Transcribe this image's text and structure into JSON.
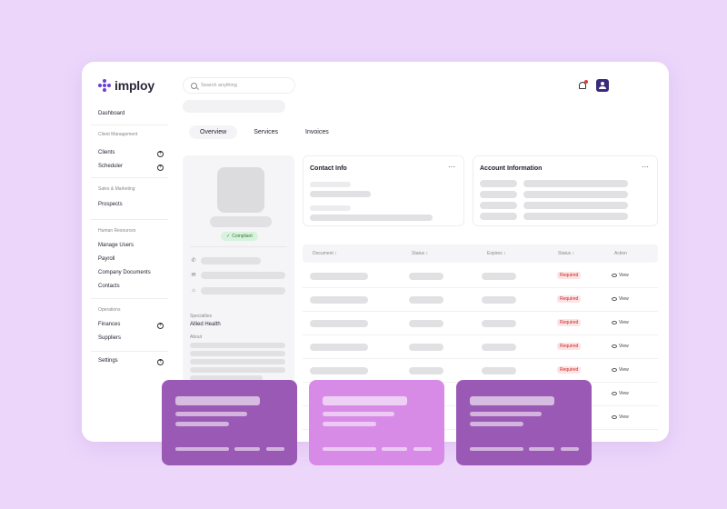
{
  "brand": {
    "name": "imploy",
    "accent": "#6b3fd4"
  },
  "search": {
    "placeholder": "Search anything"
  },
  "sidebar": {
    "dashboard": "Dashboard",
    "client_management": {
      "label": "Client Management",
      "clients": "Clients",
      "scheduler": "Scheduler"
    },
    "sales_marketing": {
      "label": "Sales & Marketing",
      "prospects": "Prospects"
    },
    "human_resources": {
      "label": "Human Resources",
      "manage_users": "Manage Users",
      "payroll": "Payroll",
      "company_documents": "Company Documents",
      "contacts": "Contacts"
    },
    "operations": {
      "label": "Operations",
      "finances": "Finances",
      "suppliers": "Suppliers"
    },
    "settings": "Settings"
  },
  "tabs": [
    "Overview",
    "Services",
    "Invoices"
  ],
  "profile": {
    "badge": "Compliant",
    "specialties_label": "Specialties",
    "specialties_value": "Allied Health",
    "about_label": "About"
  },
  "cards": {
    "contact_title": "Contact Info",
    "account_title": "Account Information",
    "more": "⋯"
  },
  "table": {
    "headers": [
      "Document ↕",
      "Status ↕",
      "Expires ↕",
      "Status ↕",
      "Action"
    ],
    "rows": [
      {
        "status": "Required",
        "action": "View"
      },
      {
        "status": "Required",
        "action": "View"
      },
      {
        "status": "Required",
        "action": "View"
      },
      {
        "status": "Required",
        "action": "View"
      },
      {
        "status": "Required",
        "action": "View"
      },
      {
        "status": "",
        "action": "View"
      },
      {
        "status": "",
        "action": "View"
      }
    ]
  },
  "overlay_colors": [
    "#9b59b6",
    "#d88be6",
    "#9b59b6"
  ]
}
